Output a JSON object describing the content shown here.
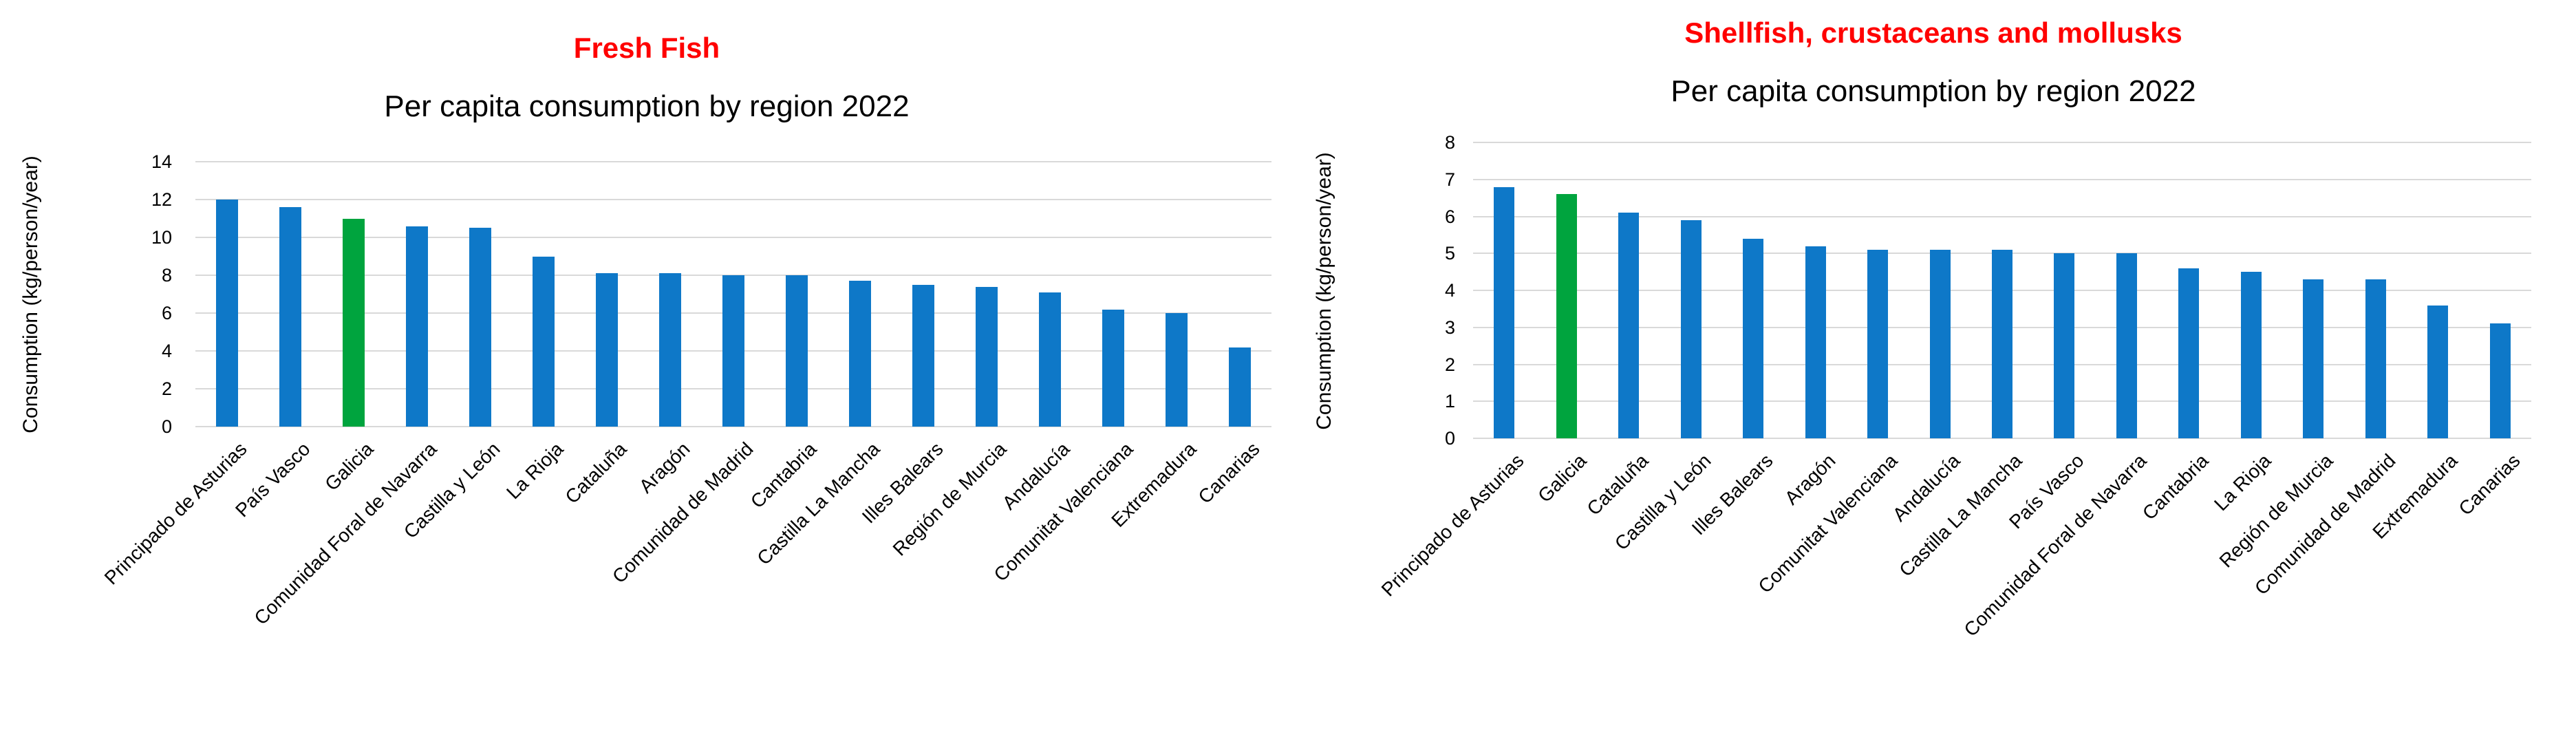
{
  "colors": {
    "bar_blue": "#0e78c8",
    "bar_green": "#00a43e",
    "title_red": "#ff0000",
    "grid_gray": "#d9d9d9",
    "text_black": "#000000"
  },
  "chart_data": [
    {
      "type": "bar",
      "title": "Fresh Fish",
      "subtitle": "Per capita consumption by region 2022",
      "ylabel": "Consumption (kg/person/year)",
      "xlabel": "",
      "categories": [
        "Principado de Asturias",
        "País Vasco",
        "Galicia",
        "Comunidad Foral de Navarra",
        "Castilla y León",
        "La Rioja",
        "Cataluña",
        "Aragón",
        "Comunidad de Madrid",
        "Cantabria",
        "Castilla La Mancha",
        "Illes Balears",
        "Región de Murcia",
        "Andalucía",
        "Comunitat Valenciana",
        "Extremadura",
        "Canarias"
      ],
      "values": [
        12.0,
        11.6,
        11.0,
        10.6,
        10.5,
        9.0,
        8.1,
        8.1,
        8.0,
        8.0,
        7.7,
        7.5,
        7.4,
        7.1,
        6.2,
        6.0,
        4.2
      ],
      "highlight_category": "Galicia",
      "ylim": [
        0,
        14
      ],
      "ytick_step": 2,
      "ytick_labels": [
        "0",
        "2",
        "4",
        "6",
        "8",
        "10",
        "12",
        "14"
      ],
      "grid": true,
      "legend": false
    },
    {
      "type": "bar",
      "title": "Shellfish, crustaceans and mollusks",
      "subtitle": "Per capita consumption by region 2022",
      "ylabel": "Consumption (kg/person/year)",
      "xlabel": "",
      "categories": [
        "Principado de Asturias",
        "Galicia",
        "Cataluña",
        "Castilla y León",
        "Illes Balears",
        "Aragón",
        "Comunitat Valenciana",
        "Andalucía",
        "Castilla La Mancha",
        "País Vasco",
        "Comunidad Foral de Navarra",
        "Cantabria",
        "La Rioja",
        "Región de Murcia",
        "Comunidad de Madrid",
        "Extremadura",
        "Canarias"
      ],
      "values": [
        6.8,
        6.6,
        6.1,
        5.9,
        5.4,
        5.2,
        5.1,
        5.1,
        5.1,
        5.0,
        5.0,
        4.6,
        4.5,
        4.3,
        4.3,
        3.6,
        3.1
      ],
      "highlight_category": "Galicia",
      "ylim": [
        0,
        8
      ],
      "ytick_step": 1,
      "ytick_labels": [
        "0",
        "1",
        "2",
        "3",
        "4",
        "5",
        "6",
        "7",
        "8"
      ],
      "grid": true,
      "legend": false
    }
  ]
}
